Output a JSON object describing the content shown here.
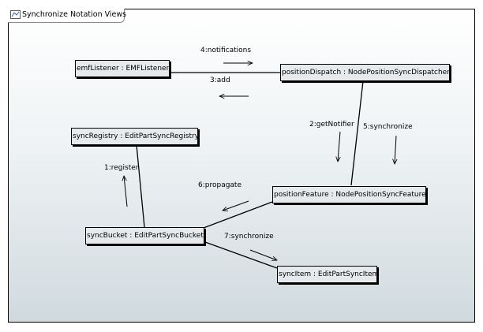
{
  "diagram": {
    "title": "Synchronize Notation Views",
    "objects": {
      "emf_listener": "emfListener : EMFListener",
      "position_dispatch": "positionDispatch : NodePositionSyncDispatcher",
      "sync_registry": "syncRegistry : EditPartSyncRegistry",
      "position_feature": "positionFeature : NodePositionSyncFeature",
      "sync_bucket": "syncBucket : EditPartSyncBucket",
      "sync_item": "syncItem : EditPartSyncItem"
    },
    "messages": {
      "m1": "1:register",
      "m2": "2:getNotifier",
      "m3": "3:add",
      "m4": "4:notifications",
      "m5": "5:synchronize",
      "m6": "6:propagate",
      "m7": "7:synchronize"
    }
  }
}
